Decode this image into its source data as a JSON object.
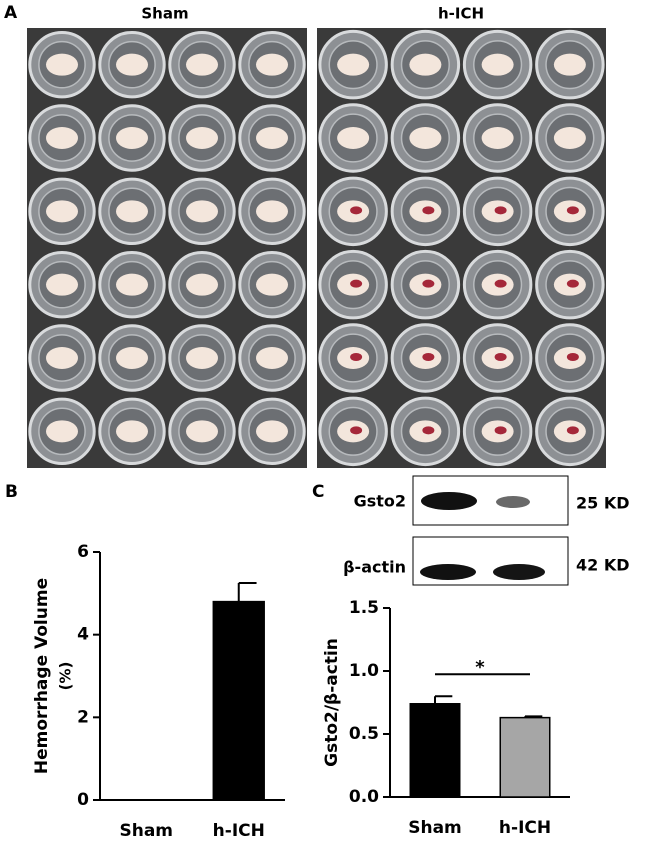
{
  "photo_panel": {
    "label": "A",
    "titles": [
      "Sham",
      "h-ICH"
    ]
  },
  "blot": {
    "label": "C",
    "rows": [
      {
        "protein": "Gsto2",
        "size": "25 KD"
      },
      {
        "protein": "β-actin",
        "size": "42 KD"
      }
    ]
  },
  "chart_data": [
    {
      "type": "bar",
      "panel_label": "B",
      "y_label": "Hemorrhage Volume",
      "y_label_unit": "(%)",
      "categories": [
        "Sham",
        "h-ICH"
      ],
      "values": [
        0,
        4.8
      ],
      "errors": [
        0,
        0.45
      ],
      "colors": [
        "#000000",
        "#000000"
      ],
      "ylim": [
        0,
        6
      ],
      "yticks": [
        0,
        2,
        4,
        6
      ]
    },
    {
      "type": "bar",
      "y_label": "Gsto2/β-actin",
      "categories": [
        "Sham",
        "h-ICH"
      ],
      "values": [
        0.74,
        0.63
      ],
      "errors": [
        0.06,
        0.01
      ],
      "colors": [
        "#000000",
        "#a6a6a6"
      ],
      "ylim": [
        0,
        1.5
      ],
      "yticks": [
        {
          "value": 0,
          "label": "0.0"
        },
        {
          "value": 0.5,
          "label": "0.5"
        },
        {
          "value": 1,
          "label": "1.0"
        },
        {
          "value": 1.5,
          "label": "1.5"
        }
      ],
      "annotations": [
        {
          "text": "*"
        }
      ]
    }
  ]
}
